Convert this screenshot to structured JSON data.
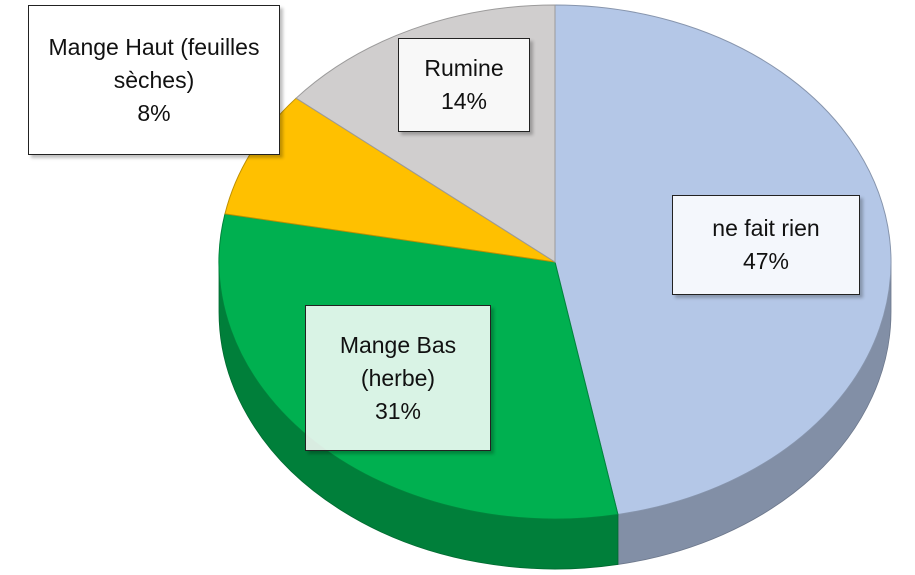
{
  "chart_data": {
    "type": "pie3d",
    "categories": [
      "ne fait rien",
      "Mange Bas (herbe)",
      "Mange Haut (feuilles sèches)",
      "Rumine"
    ],
    "values": [
      47,
      31,
      8,
      14
    ],
    "value_labels": [
      "47%",
      "31%",
      "8%",
      "14%"
    ],
    "colors": [
      "#b4c7e7",
      "#00b050",
      "#ffc000",
      "#d0cece"
    ]
  }
}
